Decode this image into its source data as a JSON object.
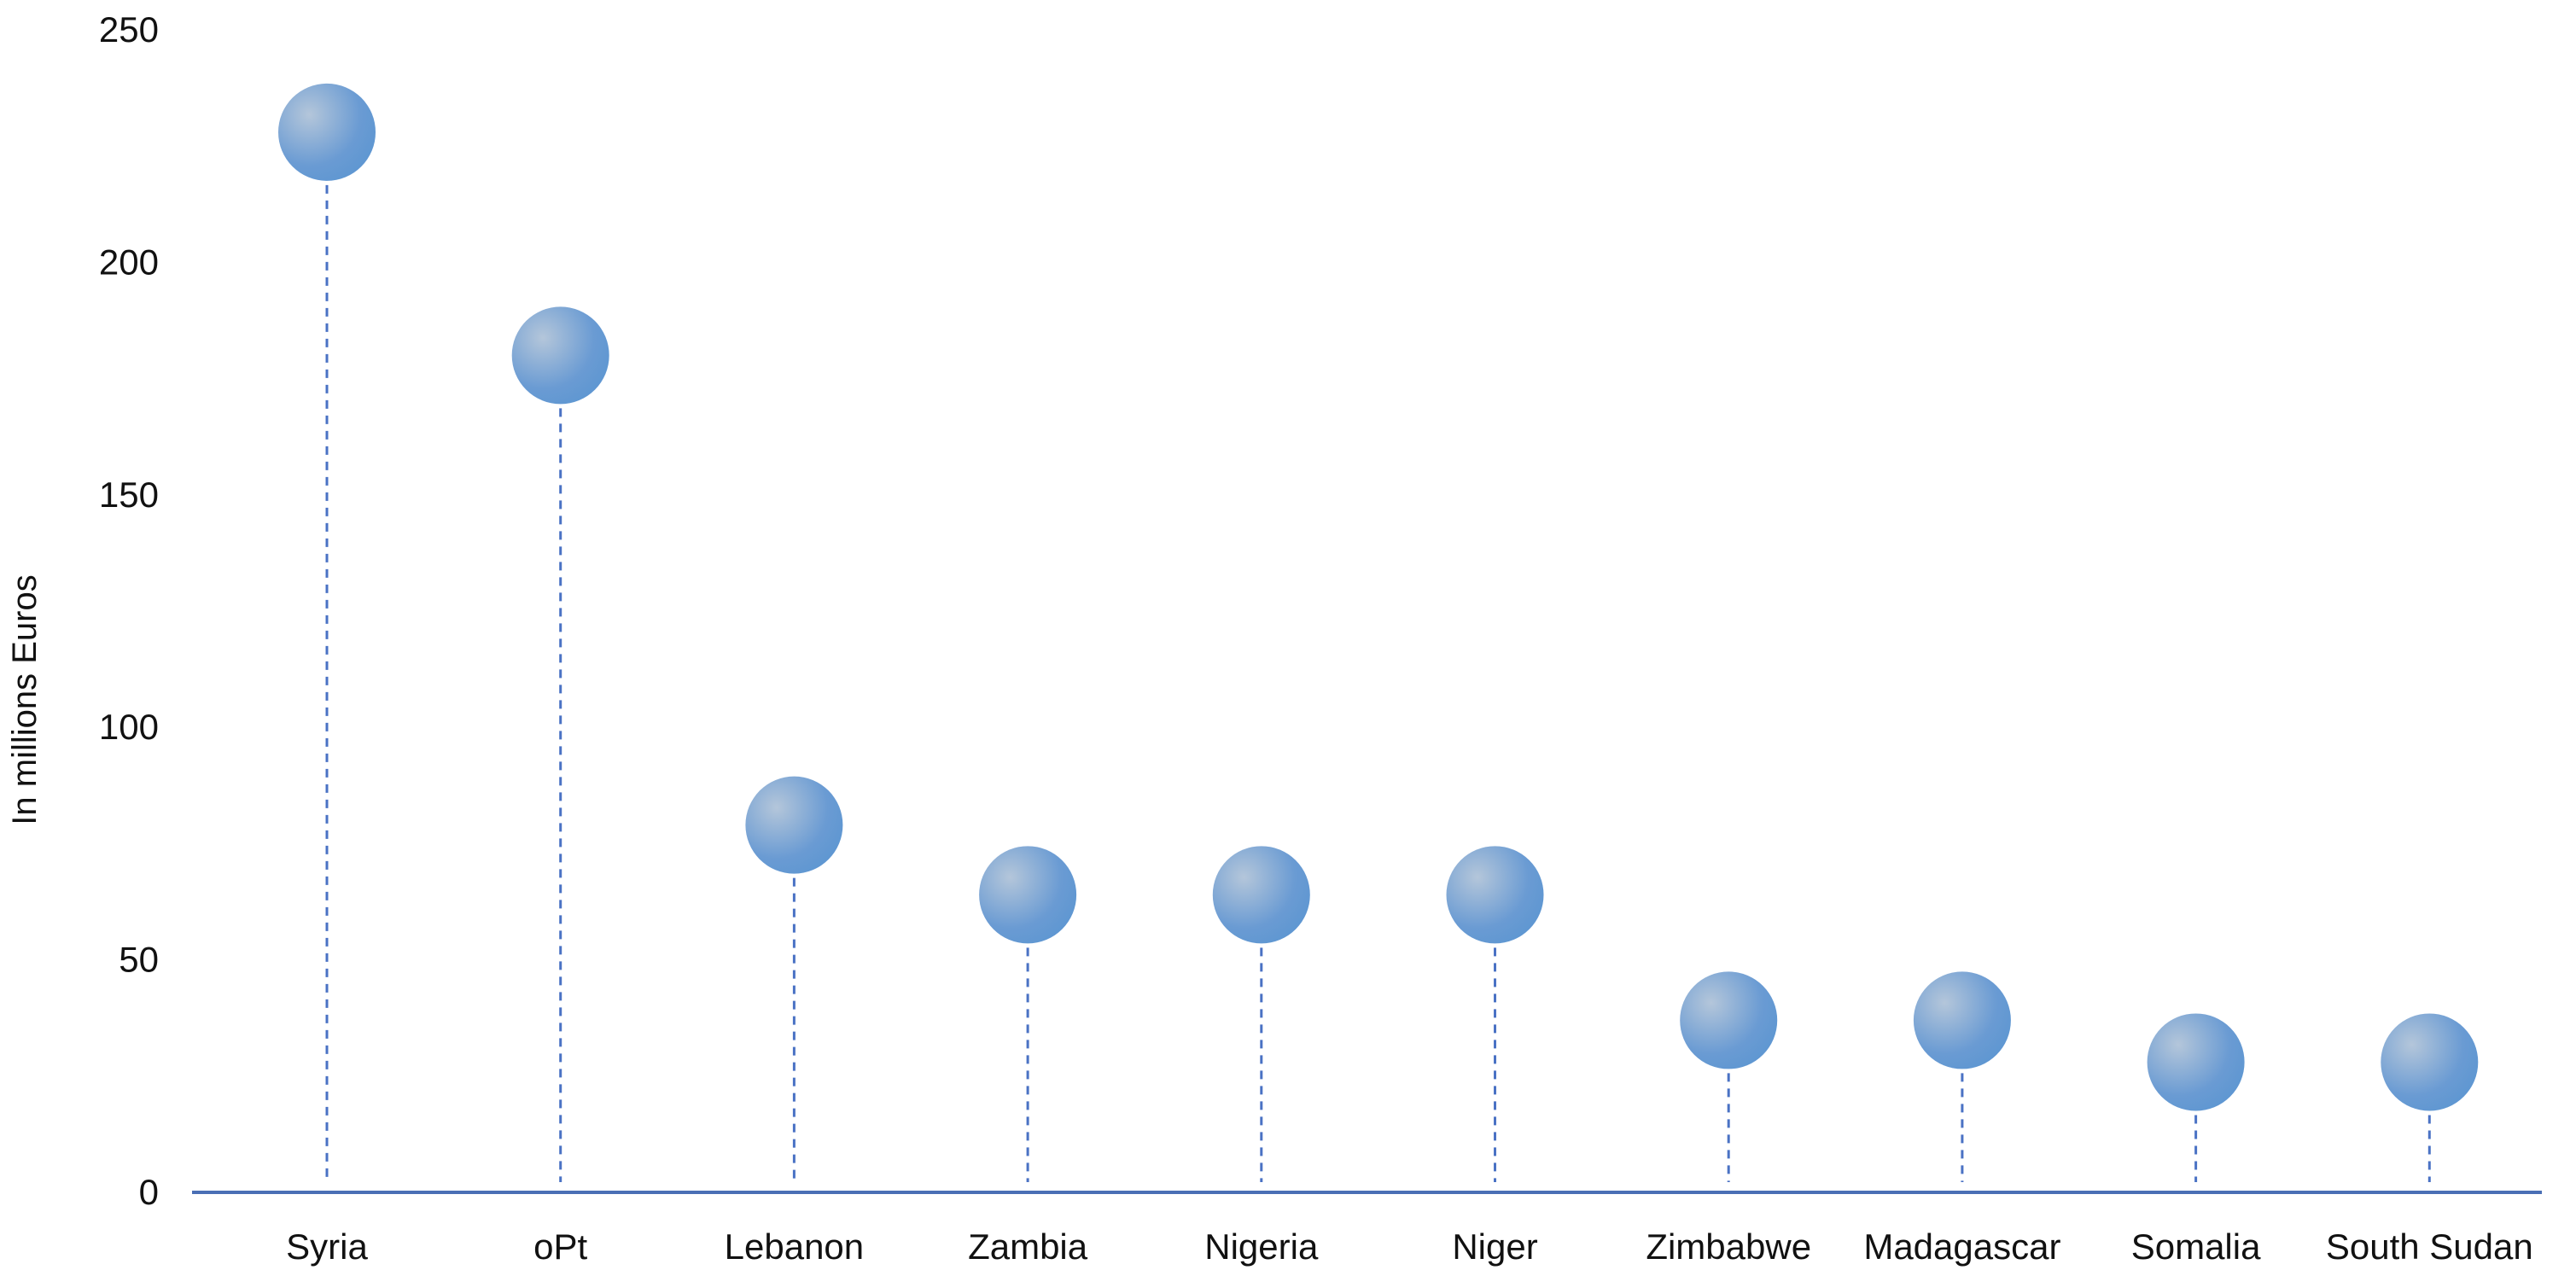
{
  "chart_data": {
    "type": "scatter",
    "style": "lollipop",
    "title": "",
    "xlabel": "",
    "ylabel": "In millions Euros",
    "ylim": [
      0,
      250
    ],
    "yticks": [
      0,
      50,
      100,
      150,
      200,
      250
    ],
    "grid": false,
    "categories": [
      "Syria",
      "oPt",
      "Lebanon",
      "Zambia",
      "Nigeria",
      "Niger",
      "Zimbabwe",
      "Madagascar",
      "Somalia",
      "South Sudan"
    ],
    "values": [
      228,
      180,
      79,
      64,
      64,
      64,
      37,
      37,
      28,
      28
    ],
    "colors": {
      "marker": "#5f97d2",
      "highlight": "#b4c6da",
      "stem": "#4a72c4",
      "axis": "#4a6fb5"
    }
  }
}
